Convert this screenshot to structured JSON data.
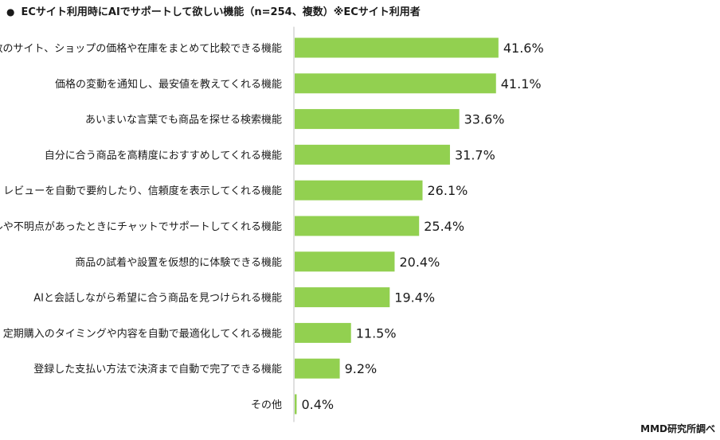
{
  "header": {
    "bullet": "●",
    "title": "ECサイト利用時にAIでサポートして欲しい機能（n=254、複数）※ECサイト利用者"
  },
  "source": "MMD研究所調べ",
  "colors": {
    "bar": "#92d050",
    "axis": "#bfbfbf"
  },
  "chart_data": {
    "type": "bar",
    "orientation": "horizontal",
    "title": "ECサイト利用時にAIでサポートして欲しい機能（n=254、複数）※ECサイト利用者",
    "categories": [
      "複数のサイト、ショップの価格や在庫をまとめて比較できる機能",
      "価格の変動を通知し、最安値を教えてくれる機能",
      "あいまいな言葉でも商品を探せる検索機能",
      "自分に合う商品を高精度におすすめしてくれる機能",
      "レビューを自動で要約したり、信頼度を表示してくれる機能",
      "トラブルや不明点があったときにチャットでサポートしてくれる機能",
      "商品の試着や設置を仮想的に体験できる機能",
      "AIと会話しながら希望に合う商品を見つけられる機能",
      "定期購入のタイミングや内容を自動で最適化してくれる機能",
      "登録した支払い方法で決済まで自動で完了できる機能",
      "その他"
    ],
    "values": [
      41.6,
      41.1,
      33.6,
      31.7,
      26.1,
      25.4,
      20.4,
      19.4,
      11.5,
      9.2,
      0.4
    ],
    "labels": [
      "41.6%",
      "41.1%",
      "33.6%",
      "31.7%",
      "26.1%",
      "25.4%",
      "20.4%",
      "19.4%",
      "11.5%",
      "9.2%",
      "0.4%"
    ],
    "unit": "%",
    "grid": false,
    "legend": "none"
  }
}
